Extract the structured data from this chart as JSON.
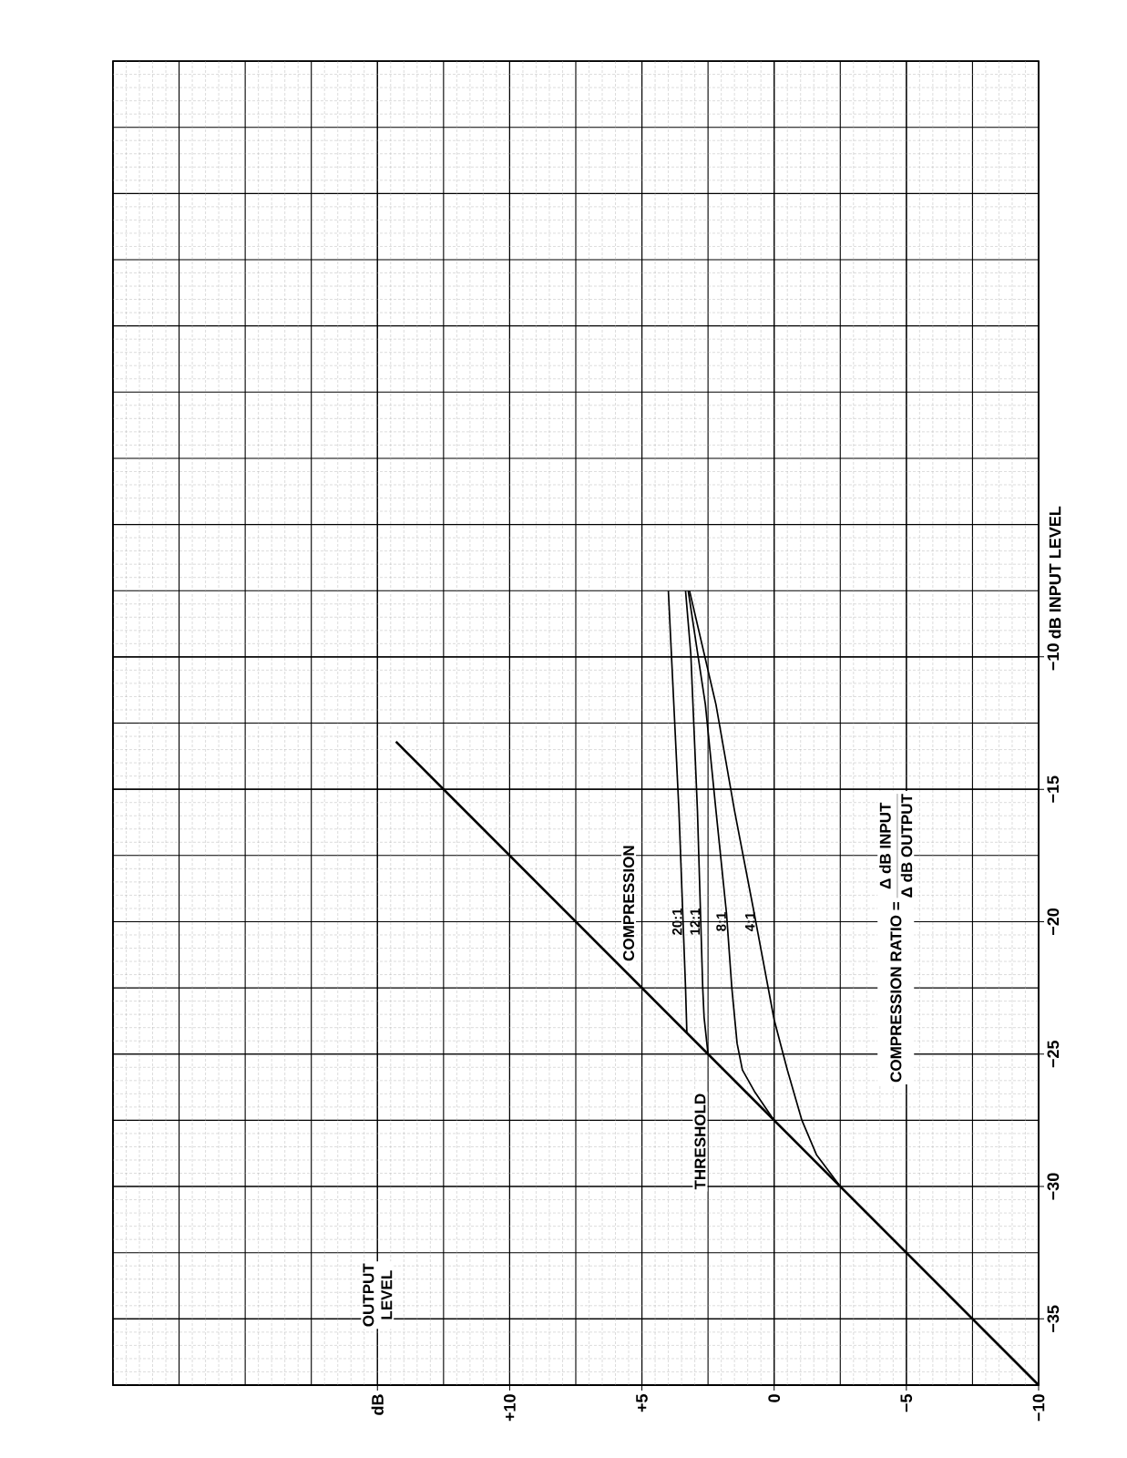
{
  "chart_data": {
    "type": "line",
    "ylabel": "dB INPUT LEVEL",
    "xlim": [
      25,
      -10
    ],
    "ylim": [
      -37.5,
      12.5
    ],
    "xticks": [
      {
        "value": 15,
        "label": "dB"
      },
      {
        "value": 10,
        "label": "+10"
      },
      {
        "value": 5,
        "label": "+5"
      },
      {
        "value": 0,
        "label": "0"
      },
      {
        "value": -5,
        "label": "−5"
      },
      {
        "value": -10,
        "label": "−10"
      }
    ],
    "yticks": [
      {
        "value": -35,
        "label": "−35"
      },
      {
        "value": -30,
        "label": "−30"
      },
      {
        "value": -25,
        "label": "−25"
      },
      {
        "value": -20,
        "label": "−20"
      },
      {
        "value": -15,
        "label": "−15"
      },
      {
        "value": -10,
        "label": "−10"
      }
    ],
    "grid": true,
    "series": [
      {
        "color": "#000000",
        "x": [
          -10,
          14.3
        ],
        "values": [
          -37.5,
          -13.2
        ]
      },
      {
        "name": "20:1",
        "color": "#000000",
        "x": [
          3.3,
          3.35,
          3.6,
          4.0
        ],
        "values": [
          -24.2,
          -22.5,
          -15.8,
          -7.5
        ]
      },
      {
        "name": "12:1",
        "color": "#000000",
        "x": [
          2.5,
          2.65,
          2.7,
          2.9,
          3.15,
          3.35
        ],
        "values": [
          -25,
          -23.6,
          -22.5,
          -15.8,
          -9.9,
          -7.5
        ]
      },
      {
        "name": "8:1",
        "color": "#000000",
        "x": [
          0,
          0.75,
          1.2,
          1.4,
          1.6,
          1.8,
          2.2,
          2.6,
          3.25
        ],
        "values": [
          -27.5,
          -26.4,
          -25.6,
          -24.6,
          -22.5,
          -19.7,
          -15.8,
          -11.8,
          -7.5
        ]
      },
      {
        "name": "4:1",
        "color": "#000000",
        "x": [
          -2.5,
          -1.6,
          -1.05,
          -0.5,
          0,
          0.75,
          1.5,
          2.2,
          3.2
        ],
        "values": [
          -30,
          -28.8,
          -27.5,
          -25.6,
          -23.7,
          -19.7,
          -15.8,
          -11.8,
          -7.5
        ]
      }
    ],
    "annotations": [
      "OUTPUT LEVEL",
      "COMPRESSION",
      "THRESHOLD",
      "COMPRESSION RATIO =",
      "Δ dB INPUT",
      "Δ dB OUTPUT"
    ]
  }
}
